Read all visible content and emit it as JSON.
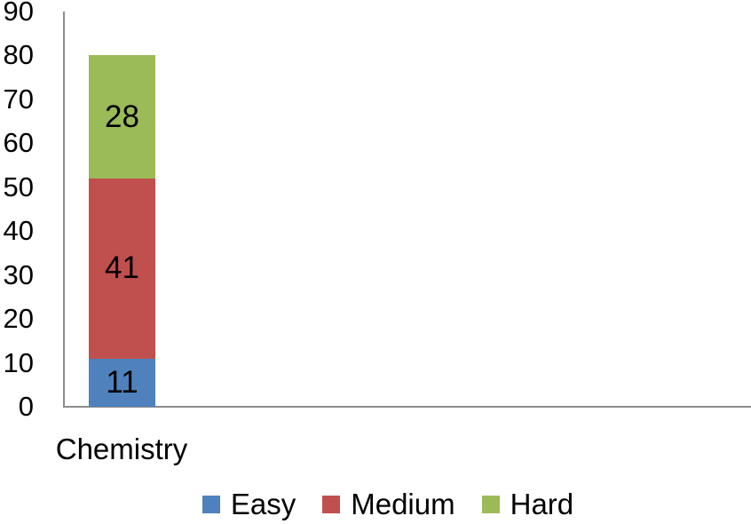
{
  "chart_data": {
    "type": "bar",
    "stacked": true,
    "orientation": "vertical",
    "categories": [
      "Chemistry"
    ],
    "series": [
      {
        "name": "Easy",
        "color": "#4F81BD",
        "values": [
          11
        ]
      },
      {
        "name": "Medium",
        "color": "#C0504D",
        "values": [
          41
        ]
      },
      {
        "name": "Hard",
        "color": "#9BBB59",
        "values": [
          28
        ]
      }
    ],
    "data_labels": [
      11,
      41,
      28
    ],
    "ylim": [
      0,
      90
    ],
    "yticks": [
      0,
      10,
      20,
      30,
      40,
      50,
      60,
      70,
      80,
      90
    ],
    "xlabel": "",
    "ylabel": "",
    "title": "",
    "grid": false,
    "legend_position": "bottom",
    "legend_entries": [
      "Easy",
      "Medium",
      "Hard"
    ],
    "axis_color": "#8C8C8C",
    "text_color": "#000000",
    "background_color": "#FFFFFF"
  }
}
